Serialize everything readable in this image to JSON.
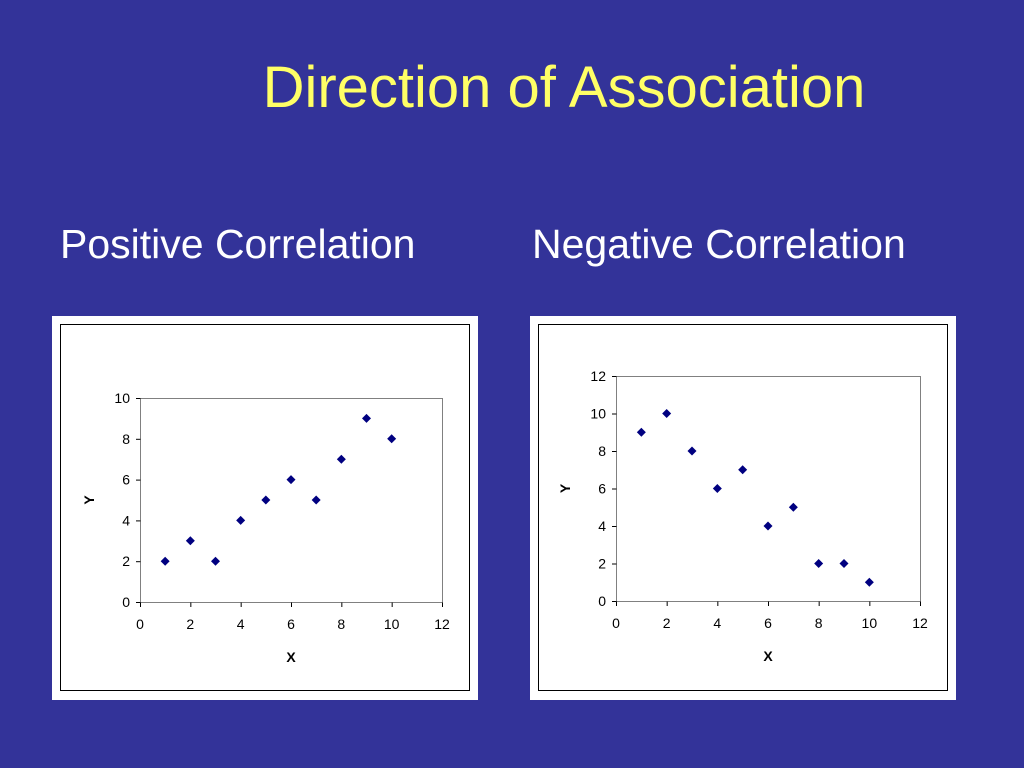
{
  "slide": {
    "title": "Direction of Association",
    "subtitle_left": "Positive Correlation",
    "subtitle_right": "Negative Correlation",
    "background_color": "#333399",
    "title_color": "#ffff66",
    "marker_color": "#000080"
  },
  "chart_data": [
    {
      "type": "scatter",
      "title": "",
      "xlabel": "X",
      "ylabel": "Y",
      "xlim": [
        0,
        12
      ],
      "ylim": [
        0,
        10
      ],
      "xticks": [
        0,
        2,
        4,
        6,
        8,
        10,
        12
      ],
      "yticks": [
        0,
        2,
        4,
        6,
        8,
        10
      ],
      "grid": false,
      "marker": "diamond",
      "x": [
        1,
        2,
        3,
        4,
        5,
        6,
        7,
        8,
        9,
        10
      ],
      "y": [
        2,
        3,
        2,
        4,
        5,
        6,
        5,
        7,
        9,
        8
      ]
    },
    {
      "type": "scatter",
      "title": "",
      "xlabel": "X",
      "ylabel": "Y",
      "xlim": [
        0,
        12
      ],
      "ylim": [
        0,
        12
      ],
      "xticks": [
        0,
        2,
        4,
        6,
        8,
        10,
        12
      ],
      "yticks": [
        0,
        2,
        4,
        6,
        8,
        10,
        12
      ],
      "grid": false,
      "marker": "diamond",
      "x": [
        1,
        2,
        3,
        4,
        5,
        6,
        7,
        8,
        9,
        10
      ],
      "y": [
        9,
        10,
        8,
        6,
        7,
        4,
        5,
        2,
        2,
        1
      ]
    }
  ]
}
